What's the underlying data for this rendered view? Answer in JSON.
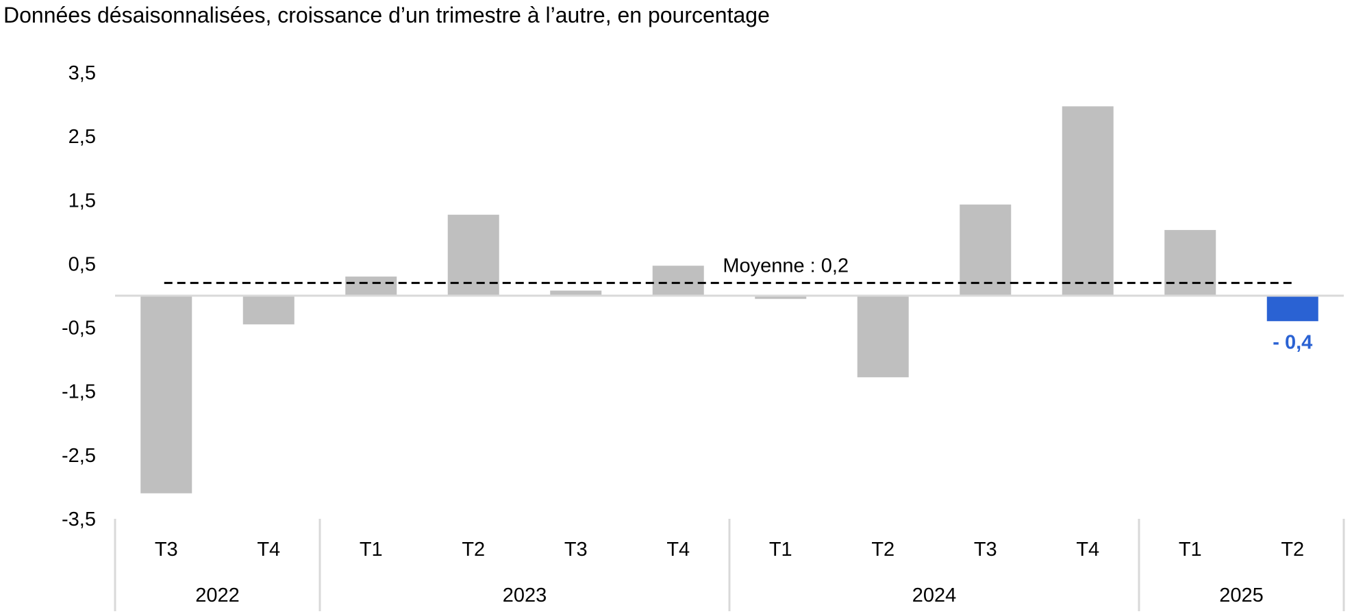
{
  "chart_data": {
    "type": "bar",
    "title": "Données désaisonnalisées, croissance d’un trimestre à l’autre, en pourcentage",
    "xlabel": "",
    "ylabel": "",
    "ylim": [
      -3.5,
      3.5
    ],
    "yticks": [
      "3,5",
      "2,5",
      "1,5",
      "0,5",
      "-0,5",
      "-1,5",
      "-2,5",
      "-3,5"
    ],
    "categories": [
      "T3",
      "T4",
      "T1",
      "T2",
      "T3",
      "T4",
      "T1",
      "T2",
      "T3",
      "T4",
      "T1",
      "T2"
    ],
    "year_groups": [
      {
        "label": "2022",
        "count": 2
      },
      {
        "label": "2023",
        "count": 4
      },
      {
        "label": "2024",
        "count": 4
      },
      {
        "label": "2025",
        "count": 2
      }
    ],
    "values": [
      -3.1,
      -0.45,
      0.3,
      1.27,
      0.08,
      0.47,
      -0.05,
      -1.28,
      1.43,
      2.97,
      1.03,
      -0.4
    ],
    "bar_color": "#bfbfbf",
    "highlight_index": 11,
    "highlight_color": "#2a62d3",
    "highlight_label": "- 0,4",
    "average": {
      "value": 0.2,
      "label": "Moyenne : 0,2"
    },
    "grid": false
  }
}
